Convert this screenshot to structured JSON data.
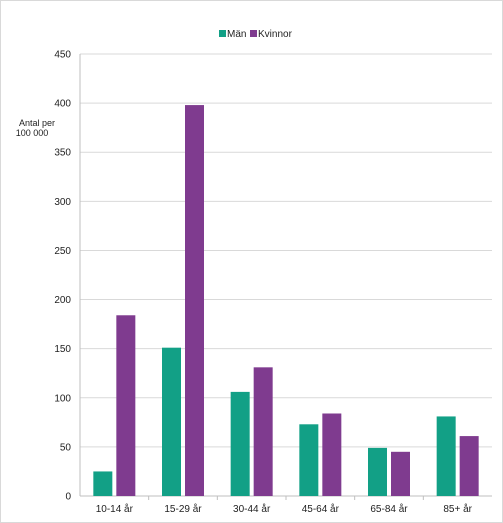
{
  "chart_data": {
    "type": "bar",
    "categories": [
      "10-14 år",
      "15-29 år",
      "30-44 år",
      "45-64 år",
      "65-84 år",
      "85+ år"
    ],
    "series": [
      {
        "name": "Män",
        "color": "#12a086",
        "values": [
          25,
          151,
          106,
          73,
          49,
          81
        ]
      },
      {
        "name": "Kvinnor",
        "color": "#7f3b8f",
        "values": [
          184,
          398,
          131,
          84,
          45,
          61
        ]
      }
    ],
    "ylabel_line1": "Antal per",
    "ylabel_line2": "100 000",
    "ylim": [
      0,
      450
    ],
    "yticks": [
      0,
      50,
      100,
      150,
      200,
      250,
      300,
      350,
      400,
      450
    ],
    "grid": true,
    "legend_position": "top-center"
  }
}
